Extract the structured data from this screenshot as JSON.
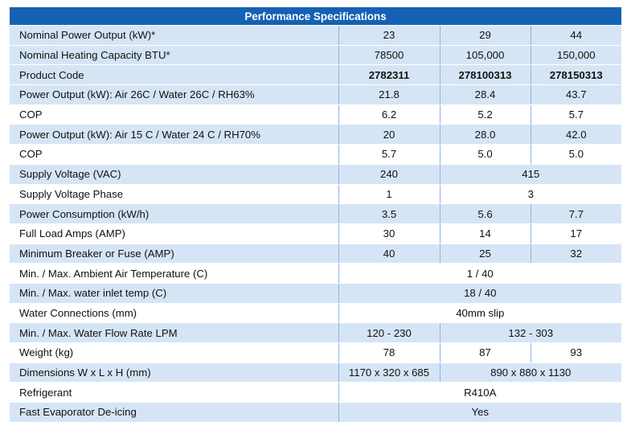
{
  "title": "Performance Specifications",
  "rows": [
    {
      "label": "Nominal Power Output (kW)*",
      "cells": [
        "23",
        "29",
        "44"
      ]
    },
    {
      "label": "Nominal Heating Capacity BTU*",
      "cells": [
        "78500",
        "105,000",
        "150,000"
      ]
    },
    {
      "label": "Product Code",
      "cells": [
        "2782311",
        "278100313",
        "278150313"
      ]
    },
    {
      "label": "Power Output (kW): Air 26C / Water 26C / RH63%",
      "cells": [
        "21.8",
        "28.4",
        "43.7"
      ]
    },
    {
      "label": "COP",
      "cells": [
        "6.2",
        "5.2",
        "5.7"
      ]
    },
    {
      "label": "Power Output (kW): Air 15 C / Water 24 C / RH70%",
      "cells": [
        "20",
        "28.0",
        "42.0"
      ]
    },
    {
      "label": "COP",
      "cells": [
        "5.7",
        "5.0",
        "5.0"
      ]
    },
    {
      "label": "Supply Voltage (VAC)",
      "cells": [
        "240",
        "415"
      ]
    },
    {
      "label": "Supply Voltage Phase",
      "cells": [
        "1",
        "3"
      ]
    },
    {
      "label": "Power Consumption (kW/h)",
      "cells": [
        "3.5",
        "5.6",
        "7.7"
      ]
    },
    {
      "label": "Full Load Amps (AMP)",
      "cells": [
        "30",
        "14",
        "17"
      ]
    },
    {
      "label": "Minimum Breaker or Fuse (AMP)",
      "cells": [
        "40",
        "25",
        "32"
      ]
    },
    {
      "label": "Min. / Max. Ambient Air Temperature (C)",
      "cells": [
        "1 / 40"
      ]
    },
    {
      "label": "Min. / Max. water inlet temp (C)",
      "cells": [
        "18 / 40"
      ]
    },
    {
      "label": "Water Connections  (mm)",
      "cells": [
        "40mm slip"
      ]
    },
    {
      "label": "Min. / Max. Water Flow Rate LPM",
      "cells": [
        "120 - 230",
        "132 - 303"
      ]
    },
    {
      "label": "Weight (kg)",
      "cells": [
        "78",
        "87",
        "93"
      ]
    },
    {
      "label": "Dimensions W x L x H (mm)",
      "cells": [
        "1170 x 320 x 685",
        "890 x 880 x 1130"
      ]
    },
    {
      "label": "Refrigerant",
      "cells": [
        "R410A"
      ]
    },
    {
      "label": "Fast Evaporator De-icing",
      "cells": [
        "Yes"
      ]
    }
  ],
  "colors": {
    "header": "#1561b3",
    "shade": "#d6e5f6",
    "divider": "#8fb2dc"
  }
}
